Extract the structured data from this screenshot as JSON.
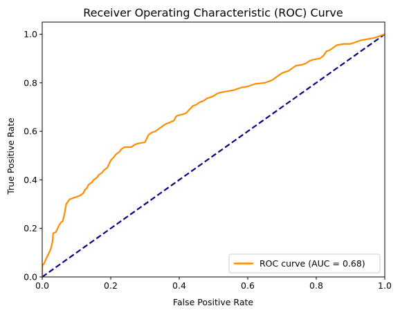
{
  "chart_data": {
    "type": "line",
    "title": "Receiver Operating Characteristic (ROC) Curve",
    "xlabel": "False Positive Rate",
    "ylabel": "True Positive Rate",
    "xlim": [
      0.0,
      1.0
    ],
    "ylim": [
      0.0,
      1.05
    ],
    "x_ticks": [
      "0.0",
      "0.2",
      "0.4",
      "0.6",
      "0.8",
      "1.0"
    ],
    "y_ticks": [
      "0.0",
      "0.2",
      "0.4",
      "0.6",
      "0.8",
      "1.0"
    ],
    "grid": false,
    "legend_position": "lower-right",
    "series": [
      {
        "name": "ROC curve (AUC = 0.68)",
        "color": "#ff8c00",
        "style": "solid",
        "points": [
          [
            0.0,
            0.0
          ],
          [
            0.0,
            0.045
          ],
          [
            0.005,
            0.055
          ],
          [
            0.01,
            0.07
          ],
          [
            0.015,
            0.085
          ],
          [
            0.02,
            0.1
          ],
          [
            0.025,
            0.115
          ],
          [
            0.03,
            0.145
          ],
          [
            0.032,
            0.18
          ],
          [
            0.04,
            0.185
          ],
          [
            0.045,
            0.2
          ],
          [
            0.05,
            0.215
          ],
          [
            0.055,
            0.225
          ],
          [
            0.06,
            0.23
          ],
          [
            0.065,
            0.26
          ],
          [
            0.07,
            0.3
          ],
          [
            0.075,
            0.31
          ],
          [
            0.08,
            0.32
          ],
          [
            0.09,
            0.325
          ],
          [
            0.1,
            0.33
          ],
          [
            0.11,
            0.335
          ],
          [
            0.12,
            0.345
          ],
          [
            0.125,
            0.36
          ],
          [
            0.13,
            0.365
          ],
          [
            0.135,
            0.38
          ],
          [
            0.145,
            0.39
          ],
          [
            0.15,
            0.4
          ],
          [
            0.16,
            0.41
          ],
          [
            0.165,
            0.42
          ],
          [
            0.175,
            0.43
          ],
          [
            0.18,
            0.44
          ],
          [
            0.19,
            0.45
          ],
          [
            0.195,
            0.465
          ],
          [
            0.2,
            0.48
          ],
          [
            0.21,
            0.495
          ],
          [
            0.215,
            0.505
          ],
          [
            0.22,
            0.51
          ],
          [
            0.225,
            0.515
          ],
          [
            0.23,
            0.525
          ],
          [
            0.24,
            0.535
          ],
          [
            0.26,
            0.535
          ],
          [
            0.27,
            0.545
          ],
          [
            0.28,
            0.55
          ],
          [
            0.3,
            0.555
          ],
          [
            0.305,
            0.57
          ],
          [
            0.31,
            0.585
          ],
          [
            0.32,
            0.595
          ],
          [
            0.33,
            0.6
          ],
          [
            0.34,
            0.61
          ],
          [
            0.35,
            0.62
          ],
          [
            0.36,
            0.63
          ],
          [
            0.37,
            0.635
          ],
          [
            0.385,
            0.645
          ],
          [
            0.39,
            0.66
          ],
          [
            0.395,
            0.665
          ],
          [
            0.41,
            0.67
          ],
          [
            0.42,
            0.675
          ],
          [
            0.43,
            0.69
          ],
          [
            0.44,
            0.705
          ],
          [
            0.45,
            0.71
          ],
          [
            0.46,
            0.72
          ],
          [
            0.47,
            0.725
          ],
          [
            0.48,
            0.735
          ],
          [
            0.49,
            0.74
          ],
          [
            0.5,
            0.745
          ],
          [
            0.51,
            0.755
          ],
          [
            0.52,
            0.76
          ],
          [
            0.54,
            0.765
          ],
          [
            0.56,
            0.77
          ],
          [
            0.57,
            0.775
          ],
          [
            0.58,
            0.78
          ],
          [
            0.6,
            0.785
          ],
          [
            0.61,
            0.79
          ],
          [
            0.62,
            0.795
          ],
          [
            0.65,
            0.8
          ],
          [
            0.67,
            0.81
          ],
          [
            0.68,
            0.82
          ],
          [
            0.69,
            0.83
          ],
          [
            0.7,
            0.84
          ],
          [
            0.72,
            0.85
          ],
          [
            0.73,
            0.86
          ],
          [
            0.74,
            0.87
          ],
          [
            0.76,
            0.875
          ],
          [
            0.77,
            0.88
          ],
          [
            0.78,
            0.89
          ],
          [
            0.79,
            0.895
          ],
          [
            0.81,
            0.9
          ],
          [
            0.82,
            0.91
          ],
          [
            0.83,
            0.93
          ],
          [
            0.84,
            0.935
          ],
          [
            0.85,
            0.945
          ],
          [
            0.86,
            0.955
          ],
          [
            0.88,
            0.96
          ],
          [
            0.9,
            0.96
          ],
          [
            0.91,
            0.965
          ],
          [
            0.93,
            0.975
          ],
          [
            0.95,
            0.98
          ],
          [
            0.97,
            0.985
          ],
          [
            0.98,
            0.99
          ],
          [
            0.99,
            0.995
          ],
          [
            1.0,
            1.0
          ]
        ]
      },
      {
        "name": "",
        "color": "#000080",
        "style": "dashed",
        "points": [
          [
            0.0,
            0.0
          ],
          [
            1.0,
            1.0
          ]
        ]
      }
    ]
  }
}
